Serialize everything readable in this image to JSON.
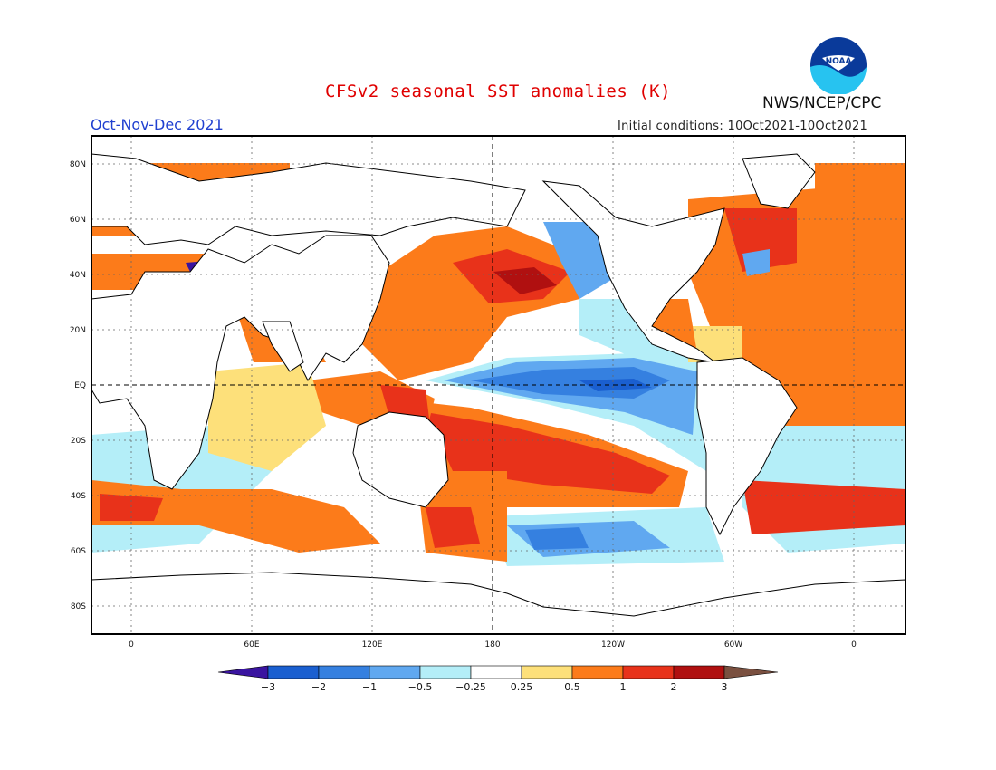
{
  "title": "CFSv2 seasonal SST anomalies (K)",
  "agency": "NWS/NCEP/CPC",
  "logo_text": "NOAA",
  "period": "Oct-Nov-Dec 2021",
  "initial_conditions": "Initial conditions: 10Oct2021-10Oct2021",
  "lat_labels": [
    "80N",
    "60N",
    "40N",
    "20N",
    "EQ",
    "20S",
    "40S",
    "60S",
    "80S"
  ],
  "lon_labels": [
    "0",
    "60E",
    "120E",
    "180",
    "120W",
    "60W",
    "0"
  ],
  "colorbar": {
    "labels": [
      "-3",
      "-2",
      "-1",
      "-0.5",
      "-0.25",
      "0.25",
      "0.5",
      "1",
      "2",
      "3"
    ],
    "colors": [
      "#3a14a0",
      "#1a5fd0",
      "#3580e0",
      "#60a8f0",
      "#b4eef8",
      "#ffffff",
      "#fde07a",
      "#fc7b1a",
      "#e8321a",
      "#b01010",
      "#7a5040"
    ]
  },
  "palette": {
    "land": "#ffffff",
    "warm1": "#fde07a",
    "warm2": "#fc7b1a",
    "warm3": "#e8321a",
    "warm4": "#b01010",
    "cool1": "#b4eef8",
    "cool2": "#60a8f0",
    "cool3": "#3580e0",
    "cool4": "#1a5fd0",
    "cool5": "#3a14a0"
  }
}
